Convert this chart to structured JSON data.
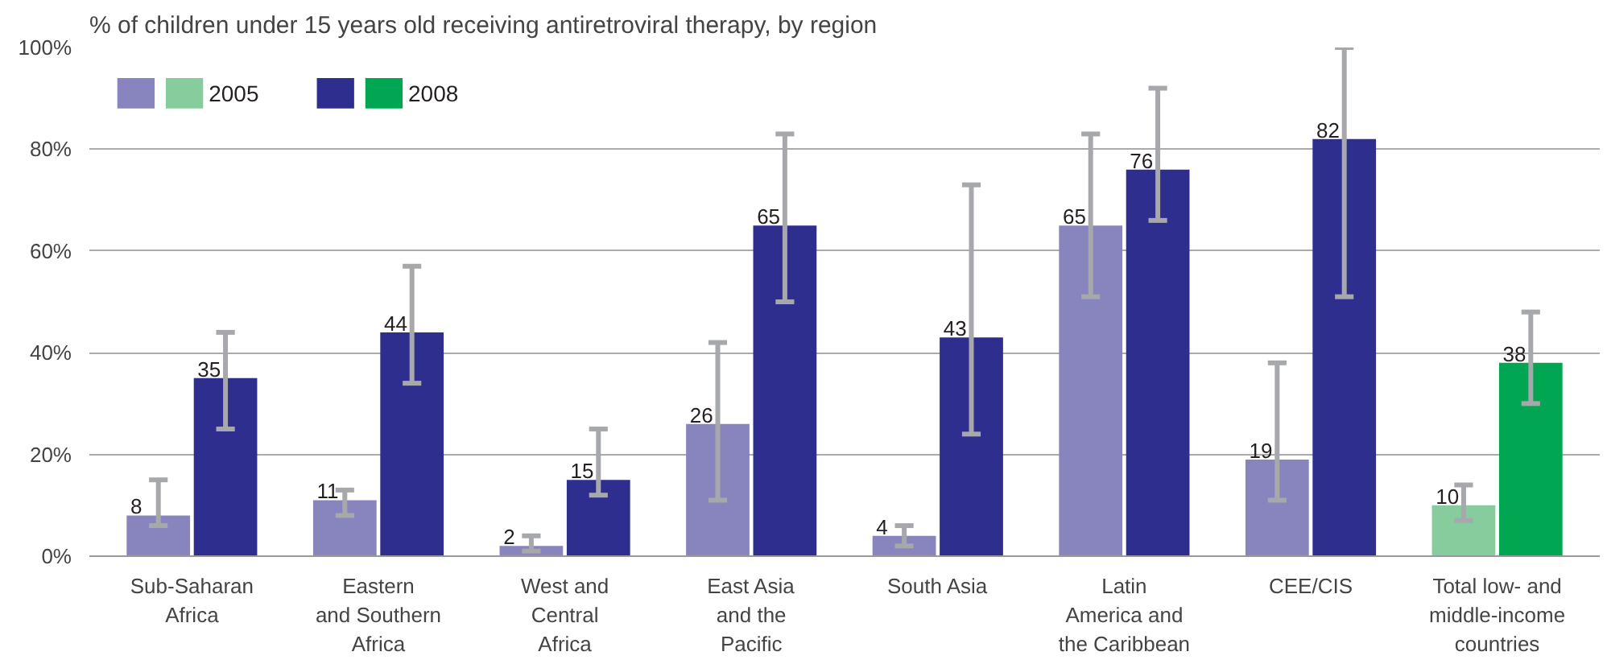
{
  "chart_data": {
    "type": "bar",
    "title": "% of children under 15 years old receiving antiretroviral therapy, by region",
    "categories": [
      "Sub-Saharan\nAfrica",
      "Eastern\nand Southern\nAfrica",
      "West and\nCentral\nAfrica",
      "East Asia\nand the\nPacific",
      "South Asia",
      "Latin\nAmerica and\nthe Caribbean",
      "CEE/CIS",
      "Total low- and\nmiddle-income\ncountries"
    ],
    "series": [
      {
        "name": "2005",
        "colors": [
          "#8884bd",
          "#8884bd",
          "#8884bd",
          "#8884bd",
          "#8884bd",
          "#8884bd",
          "#8884bd",
          "#86cc9c"
        ],
        "values": [
          8,
          11,
          2,
          26,
          4,
          65,
          19,
          10
        ],
        "errors": [
          [
            6,
            15
          ],
          [
            8,
            13
          ],
          [
            1,
            4
          ],
          [
            11,
            42
          ],
          [
            2,
            6
          ],
          [
            51,
            83
          ],
          [
            11,
            38
          ],
          [
            7,
            14
          ]
        ]
      },
      {
        "name": "2008",
        "colors": [
          "#2e2e8f",
          "#2e2e8f",
          "#2e2e8f",
          "#2e2e8f",
          "#2e2e8f",
          "#2e2e8f",
          "#2e2e8f",
          "#00a651"
        ],
        "values": [
          35,
          44,
          15,
          65,
          43,
          76,
          82,
          38
        ],
        "errors": [
          [
            25,
            44
          ],
          [
            34,
            57
          ],
          [
            12,
            25
          ],
          [
            50,
            83
          ],
          [
            24,
            73
          ],
          [
            66,
            92
          ],
          [
            51,
            100
          ],
          [
            30,
            48
          ]
        ]
      }
    ],
    "ylim": [
      0,
      100
    ],
    "yticks": [
      {
        "value": 0,
        "label": "0%"
      },
      {
        "value": 20,
        "label": "20%"
      },
      {
        "value": 40,
        "label": "40%"
      },
      {
        "value": 60,
        "label": "60%"
      },
      {
        "value": 80,
        "label": "80%"
      },
      {
        "value": 100,
        "label": "100%"
      }
    ],
    "grid": "y",
    "legend": "top left",
    "data_labels": true
  }
}
